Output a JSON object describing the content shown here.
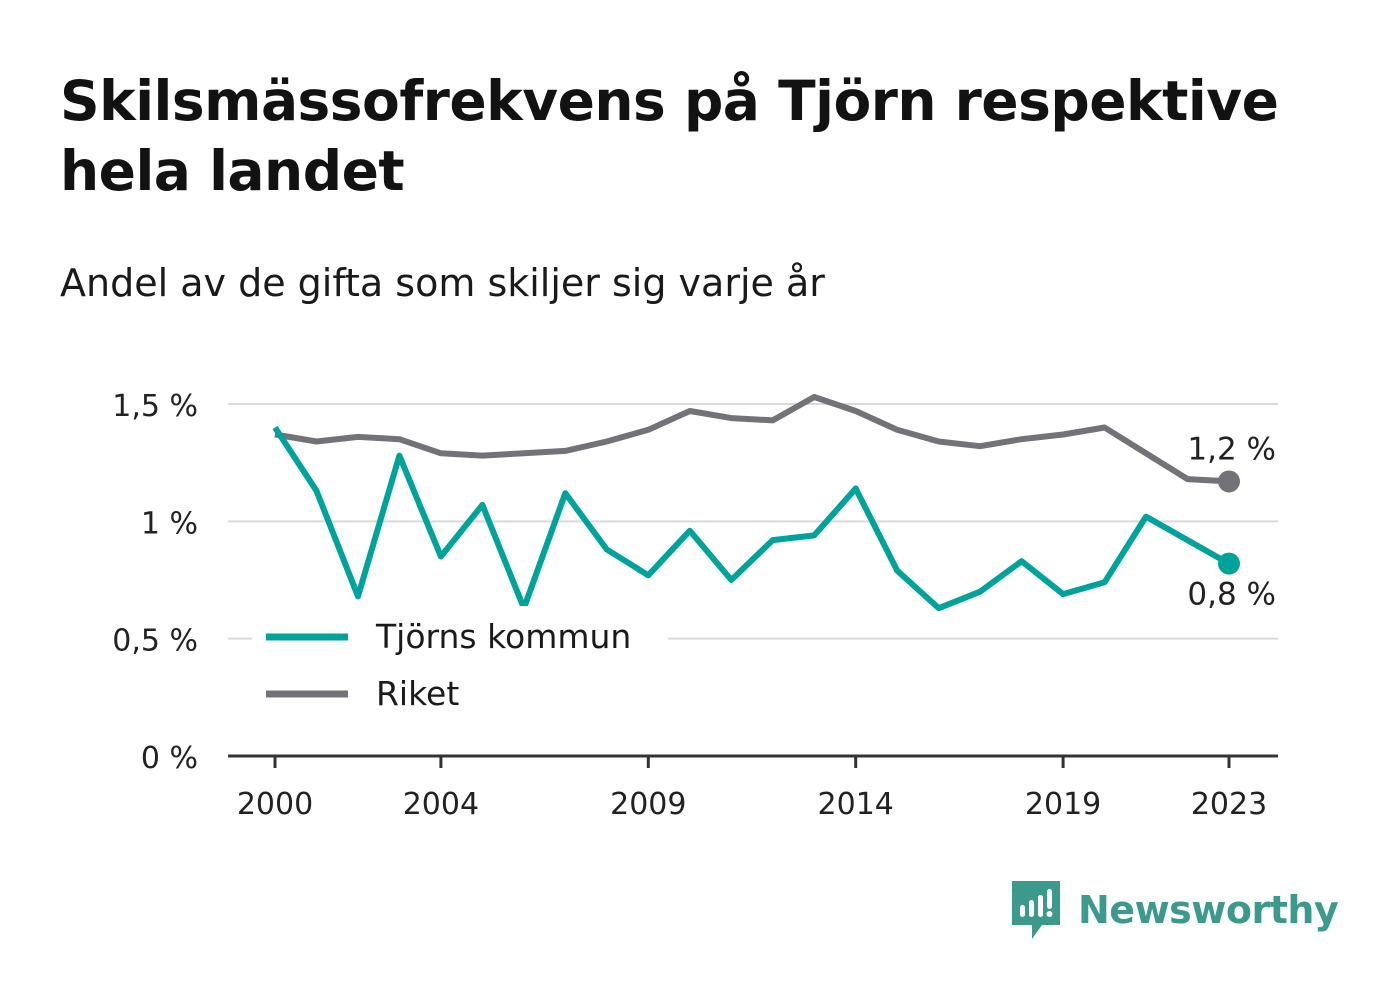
{
  "header": {
    "title": "Skilsmässofrekvens på Tjörn respektive hela landet",
    "subtitle": "Andel av de gifta som skiljer sig varje år"
  },
  "chart_data": {
    "type": "line",
    "title": "Skilsmässofrekvens på Tjörn respektive hela landet",
    "subtitle": "Andel av de gifta som skiljer sig varje år",
    "xlabel": "",
    "ylabel": "",
    "x": [
      2000,
      2001,
      2002,
      2003,
      2004,
      2005,
      2006,
      2007,
      2008,
      2009,
      2010,
      2011,
      2012,
      2013,
      2014,
      2015,
      2016,
      2017,
      2018,
      2019,
      2020,
      2021,
      2022,
      2023
    ],
    "x_tick_labels": [
      "2000",
      "2004",
      "2009",
      "2014",
      "2019",
      "2023"
    ],
    "x_tick_values": [
      2000,
      2004,
      2009,
      2014,
      2019,
      2023
    ],
    "ylim": [
      0,
      1.5
    ],
    "y_ticks": [
      0,
      0.5,
      1,
      1.5
    ],
    "y_tick_labels": [
      "0 %",
      "0,5 %",
      "1 %",
      "1,5 %"
    ],
    "grid": true,
    "legend_position": "bottom-left inside plot",
    "series": [
      {
        "name": "Tjörns kommun",
        "color": "#00a39b",
        "values": [
          1.4,
          1.13,
          0.68,
          1.28,
          0.85,
          1.07,
          0.63,
          1.12,
          0.88,
          0.77,
          0.96,
          0.75,
          0.92,
          0.94,
          1.14,
          0.79,
          0.63,
          0.7,
          0.83,
          0.69,
          0.74,
          1.02,
          0.92,
          0.82
        ],
        "end_label": "0,8 %"
      },
      {
        "name": "Riket",
        "color": "#737278",
        "values": [
          1.37,
          1.34,
          1.36,
          1.35,
          1.29,
          1.28,
          1.29,
          1.3,
          1.34,
          1.39,
          1.47,
          1.44,
          1.43,
          1.53,
          1.47,
          1.39,
          1.34,
          1.32,
          1.35,
          1.37,
          1.4,
          1.29,
          1.18,
          1.17
        ],
        "end_label": "1,2 %"
      }
    ]
  },
  "brand": {
    "name": "Newsworthy",
    "icon": "newsworthy-logo-icon",
    "color": "#3b9a8c"
  }
}
